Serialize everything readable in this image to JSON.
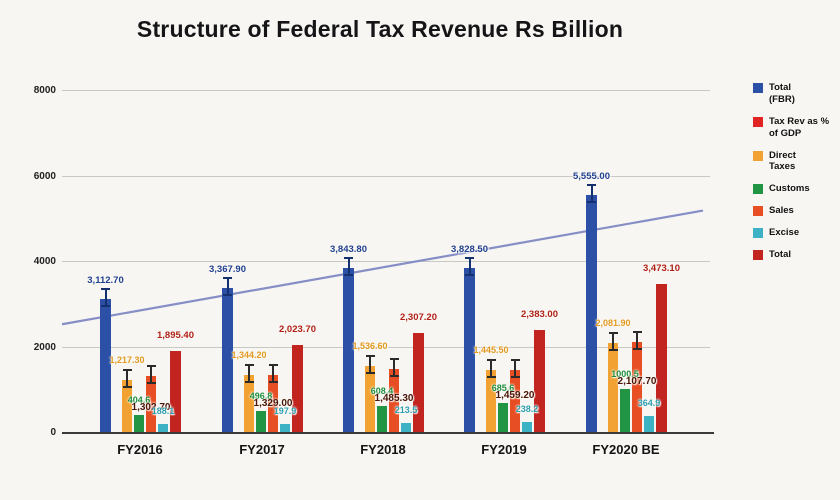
{
  "title": "Structure of Federal Tax Revenue Rs Billion",
  "chart_data": {
    "type": "bar",
    "title": "Structure of Federal Tax Revenue Rs Billion",
    "categories": [
      "FY2016",
      "FY2017",
      "FY2018",
      "FY2019",
      "FY2020 BE"
    ],
    "series": [
      {
        "name": "Total (FBR)",
        "legend_label": "Total\n(FBR)",
        "color": "#2b50a5",
        "label_color": "#1f3f8f",
        "in_chart": true,
        "whisker": "#15306e",
        "values": [
          3112.7,
          3367.9,
          3843.8,
          3828.5,
          5555.0
        ],
        "labels": [
          "3,112.70",
          "3,367.90",
          "3,843.80",
          "3,828.50",
          "5,555.00"
        ]
      },
      {
        "name": "Tax Rev as % of GDP",
        "legend_label": "Tax Rev as % of GDP",
        "color": "#e02424",
        "label_color": "#e02424",
        "in_chart": false,
        "values": [],
        "labels": []
      },
      {
        "name": "Direct Taxes",
        "legend_label": "Direct\nTaxes",
        "color": "#f2a233",
        "label_color": "#e39a20",
        "in_chart": true,
        "whisker": "#2a2a2a",
        "values": [
          1217.3,
          1344.2,
          1536.6,
          1445.5,
          2081.9
        ],
        "labels": [
          "1,217.30",
          "1,344.20",
          "1,536.60",
          "1,445.50",
          "2,081.90"
        ]
      },
      {
        "name": "Customs",
        "legend_label": "Customs",
        "color": "#219544",
        "label_color": "#1e8e3e",
        "in_chart": true,
        "values": [
          404.6,
          496.8,
          608.4,
          685.6,
          1000.5
        ],
        "labels": [
          "404.6",
          "496.8",
          "608.4",
          "685.6",
          "1000.5"
        ]
      },
      {
        "name": "Sales",
        "legend_label": "Sales",
        "color": "#e84e24",
        "label_color": "#4a1508",
        "in_chart": true,
        "whisker": "#2a2a2a",
        "values": [
          1302.7,
          1329.0,
          1485.3,
          1459.2,
          2107.7
        ],
        "labels": [
          "1,302.70",
          "1,329.00",
          "1,485.30",
          "1,459.20",
          "2,107.70"
        ]
      },
      {
        "name": "Excise",
        "legend_label": "Excise",
        "color": "#3cb2c4",
        "label_color": "#2d9fb2",
        "in_chart": true,
        "values": [
          188.1,
          197.9,
          213.5,
          238.2,
          364.9
        ],
        "labels": [
          "188.1",
          "197.9",
          "213.5",
          "238.2",
          "364.9"
        ]
      },
      {
        "name": "Total",
        "legend_label": "Total",
        "color": "#c22420",
        "label_color": "#b02017",
        "in_chart": true,
        "values": [
          1895.4,
          2023.7,
          2307.2,
          2383.0,
          3473.1
        ],
        "labels": [
          "1,895.40",
          "2,023.70",
          "2,307.20",
          "2,383.00",
          "3,473.10"
        ]
      }
    ],
    "trendline": {
      "start_value": 2520,
      "end_value": 5180,
      "color": "#868ec6"
    },
    "ylim": [
      0,
      8000
    ],
    "yticks": [
      "0",
      "2000",
      "4000",
      "6000",
      "8000"
    ],
    "grid": true,
    "legend_position": "right"
  }
}
